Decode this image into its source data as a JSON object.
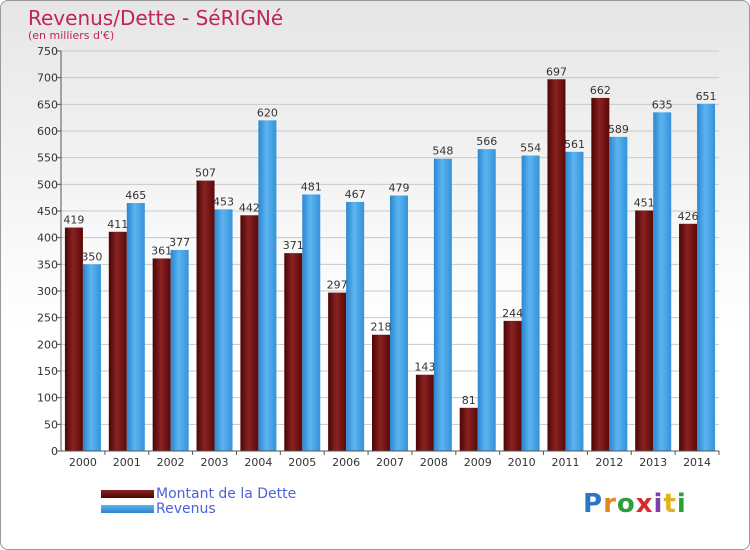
{
  "header": {
    "title": "Revenus/Dette - SéRIGNé",
    "subtitle": "(en milliers d'€)"
  },
  "legend": {
    "items": [
      "Montant de la Dette",
      "Revenus"
    ]
  },
  "logo": {
    "text": "Proxiti"
  },
  "colors": {
    "dette": "#6e0e0e",
    "revenus": "#3d9be0",
    "legend_text": "#4a63d8",
    "title": "#c0245a"
  },
  "chart_data": {
    "type": "bar",
    "title": "Revenus/Dette - SéRIGNé",
    "ylabel": "(en milliers d'€)",
    "xlabel": "",
    "ylim": [
      0,
      750
    ],
    "yticks": [
      0,
      50,
      100,
      150,
      200,
      250,
      300,
      350,
      400,
      450,
      500,
      550,
      600,
      650,
      700,
      750
    ],
    "grid": "horizontal",
    "legend_position": "bottom-left",
    "categories": [
      "2000",
      "2001",
      "2002",
      "2003",
      "2004",
      "2005",
      "2006",
      "2007",
      "2008",
      "2009",
      "2010",
      "2011",
      "2012",
      "2013",
      "2014"
    ],
    "series": [
      {
        "name": "Montant de la Dette",
        "values": [
          419,
          411,
          361,
          507,
          442,
          371,
          297,
          218,
          143,
          81,
          244,
          697,
          662,
          451,
          426
        ]
      },
      {
        "name": "Revenus",
        "values": [
          350,
          465,
          377,
          453,
          620,
          481,
          467,
          479,
          548,
          566,
          554,
          561,
          589,
          635,
          651
        ]
      }
    ]
  }
}
